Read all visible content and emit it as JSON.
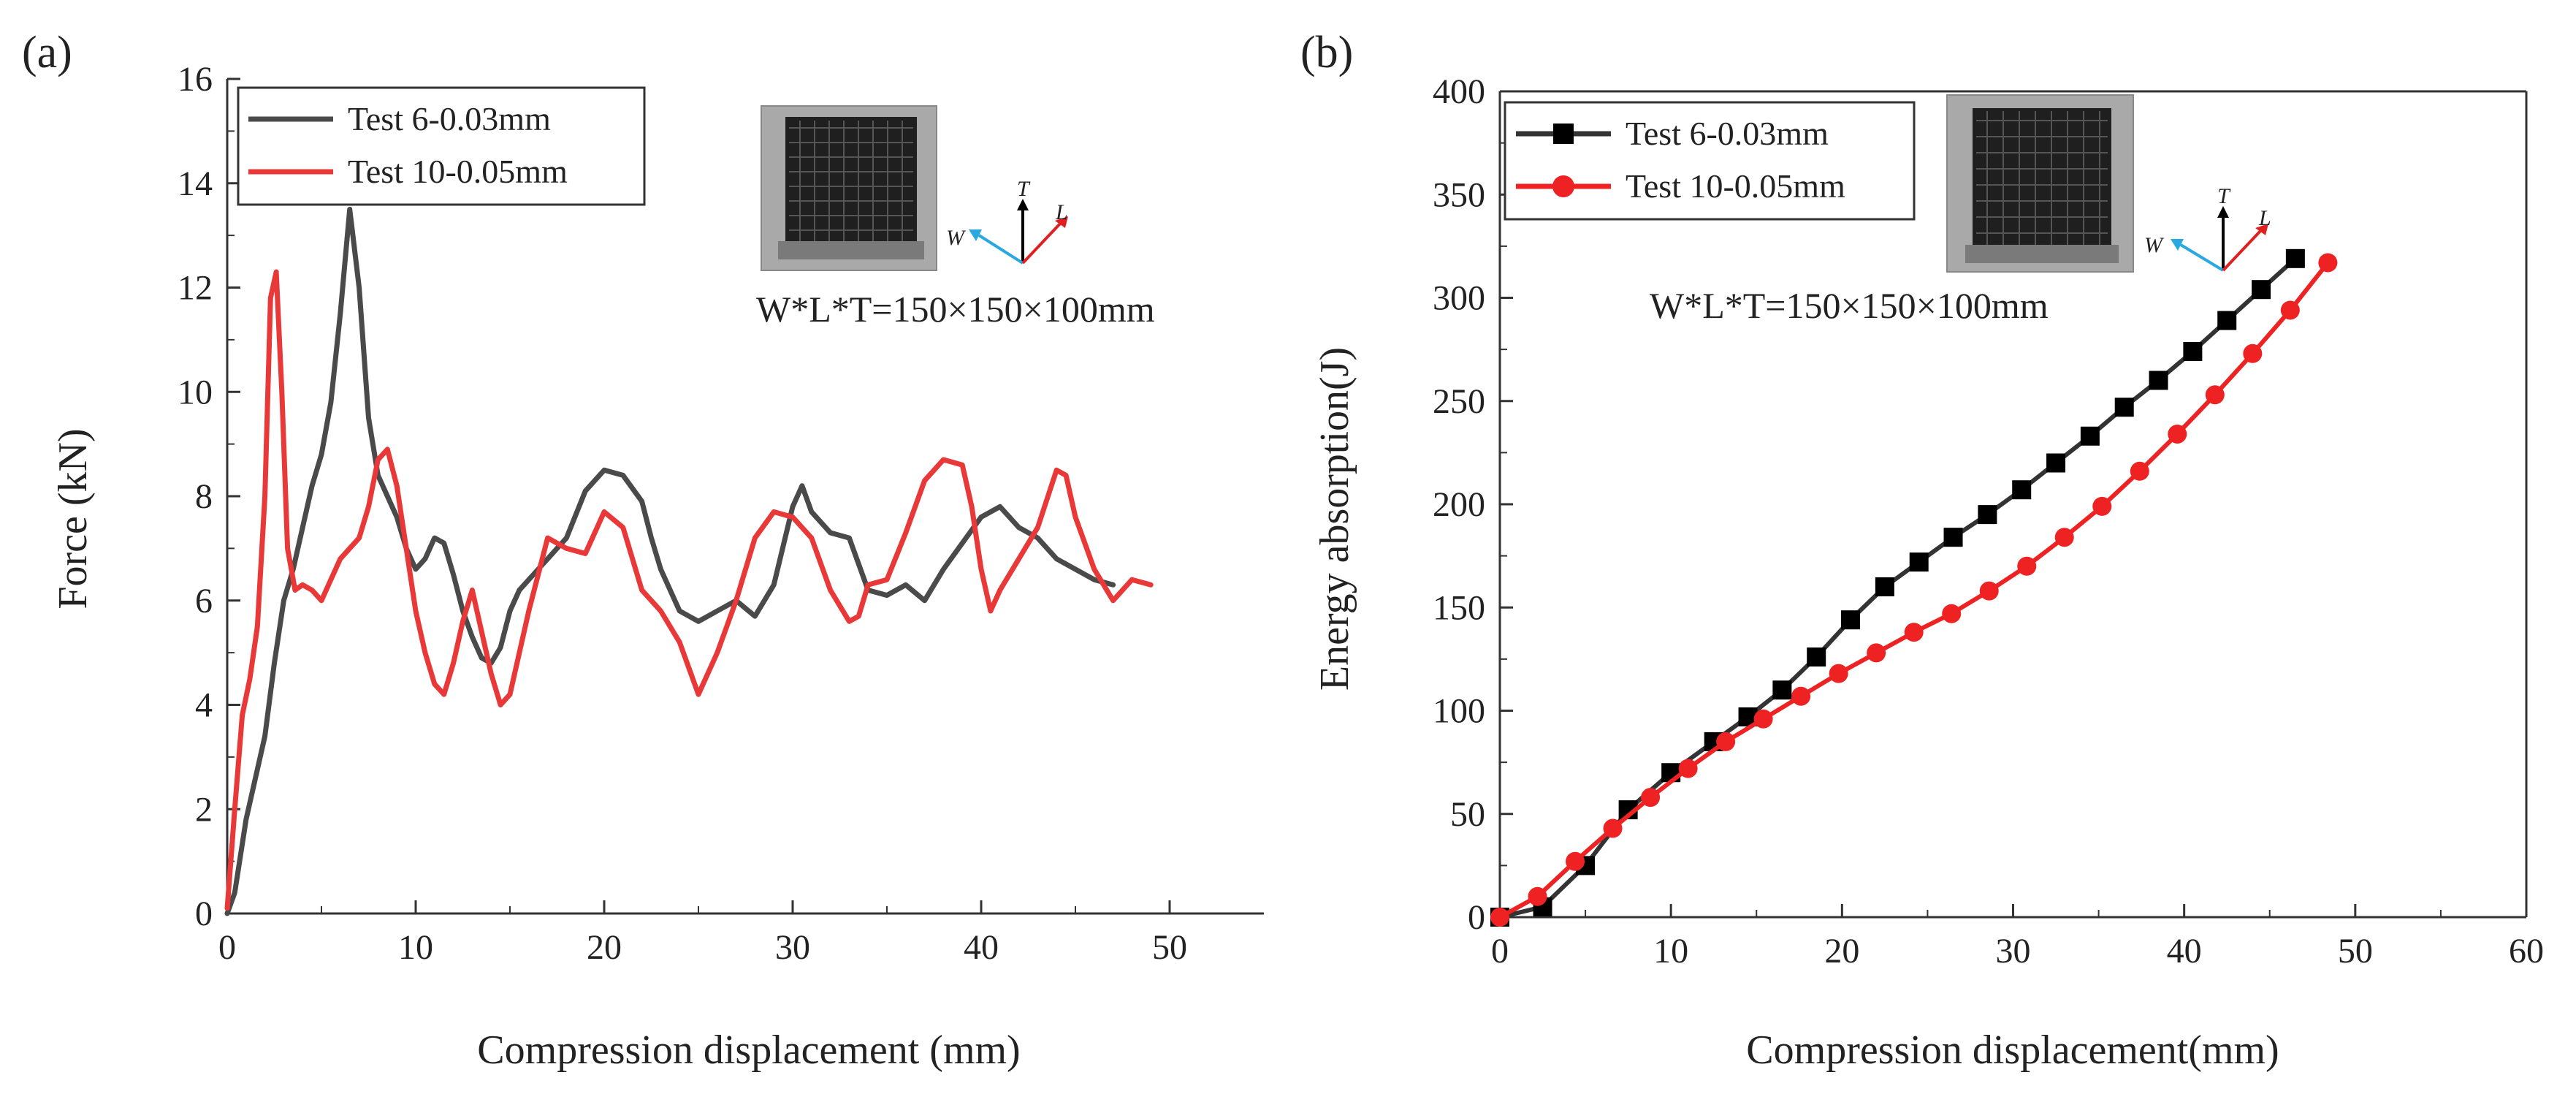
{
  "chart_data": [
    {
      "panel_label": "(a)",
      "type": "line",
      "xlabel": "Compression displacement (mm)",
      "ylabel": "Force (kN)",
      "xlim": [
        0,
        55
      ],
      "ylim": [
        0,
        16
      ],
      "xticks": [
        0,
        10,
        20,
        30,
        40,
        50
      ],
      "yticks": [
        0,
        2,
        4,
        6,
        8,
        10,
        12,
        14,
        16
      ],
      "legend_position": "top-left",
      "inset_dims": "W*L*T=150×150×100mm",
      "axis_letters": {
        "t": "T",
        "w": "W",
        "l": "L"
      },
      "series": [
        {
          "name": "Test 6-0.03mm",
          "color": "#4a4a4a",
          "x": [
            0,
            0.4,
            1,
            1.5,
            2,
            2.5,
            3,
            3.5,
            4,
            4.5,
            5,
            5.5,
            6,
            6.5,
            7,
            7.5,
            8,
            8.5,
            9,
            9.5,
            10,
            10.5,
            11,
            11.5,
            12,
            12.5,
            13,
            13.5,
            14,
            14.5,
            15,
            15.5,
            16,
            17,
            18,
            19,
            20,
            21,
            22,
            22.5,
            23,
            24,
            25,
            26,
            27,
            28,
            29,
            30,
            30.5,
            31,
            32,
            33,
            34,
            35,
            36,
            37,
            38,
            39,
            40,
            41,
            42,
            43,
            44,
            45,
            46,
            47
          ],
          "values": [
            0,
            0.4,
            1.8,
            2.6,
            3.4,
            4.8,
            6.0,
            6.6,
            7.4,
            8.2,
            8.8,
            9.8,
            11.5,
            13.5,
            12.0,
            9.5,
            8.4,
            8.0,
            7.6,
            7.0,
            6.6,
            6.8,
            7.2,
            7.1,
            6.5,
            5.8,
            5.3,
            4.9,
            4.8,
            5.1,
            5.8,
            6.2,
            6.4,
            6.8,
            7.2,
            8.1,
            8.5,
            8.4,
            7.9,
            7.2,
            6.6,
            5.8,
            5.6,
            5.8,
            6.0,
            5.7,
            6.3,
            7.8,
            8.2,
            7.7,
            7.3,
            7.2,
            6.2,
            6.1,
            6.3,
            6.0,
            6.6,
            7.1,
            7.6,
            7.8,
            7.4,
            7.2,
            6.8,
            6.6,
            6.4,
            6.3
          ]
        },
        {
          "name": "Test 10-0.05mm",
          "color": "#e83838",
          "x": [
            0,
            0.4,
            0.8,
            1.2,
            1.6,
            2,
            2.3,
            2.6,
            2.9,
            3.2,
            3.6,
            4,
            4.5,
            5,
            5.5,
            6,
            6.5,
            7,
            7.5,
            8,
            8.5,
            9,
            9.5,
            10,
            10.5,
            11,
            11.5,
            12,
            12.5,
            13,
            13.5,
            14,
            14.5,
            15,
            15.5,
            16,
            16.5,
            17,
            18,
            19,
            20,
            21,
            22,
            23,
            24,
            25,
            26,
            27,
            28,
            29,
            30,
            31,
            32,
            33,
            33.5,
            34,
            35,
            36,
            37,
            38,
            39,
            39.5,
            40,
            40.5,
            41,
            42,
            43,
            44,
            44.5,
            45,
            46,
            47,
            48,
            49
          ],
          "values": [
            0.1,
            2.0,
            3.8,
            4.5,
            5.5,
            8.0,
            11.8,
            12.3,
            10.0,
            7.0,
            6.2,
            6.3,
            6.2,
            6.0,
            6.4,
            6.8,
            7.0,
            7.2,
            7.8,
            8.7,
            8.9,
            8.2,
            7.0,
            5.8,
            5.0,
            4.4,
            4.2,
            4.8,
            5.6,
            6.2,
            5.4,
            4.6,
            4.0,
            4.2,
            5.0,
            5.8,
            6.5,
            7.2,
            7.0,
            6.9,
            7.7,
            7.4,
            6.2,
            5.8,
            5.2,
            4.2,
            5.0,
            6.0,
            7.2,
            7.7,
            7.6,
            7.2,
            6.2,
            5.6,
            5.7,
            6.3,
            6.4,
            7.3,
            8.3,
            8.7,
            8.6,
            7.8,
            6.6,
            5.8,
            6.2,
            6.8,
            7.4,
            8.5,
            8.4,
            7.6,
            6.6,
            6.0,
            6.4,
            6.3
          ]
        }
      ]
    },
    {
      "panel_label": "(b)",
      "type": "line",
      "xlabel": "Compression displacement(mm)",
      "ylabel": "Energy absorption(J)",
      "xlim": [
        0,
        60
      ],
      "ylim": [
        0,
        400
      ],
      "xticks": [
        0,
        10,
        20,
        30,
        40,
        50,
        60
      ],
      "yticks": [
        0,
        50,
        100,
        150,
        200,
        250,
        300,
        350,
        400
      ],
      "legend_position": "top-left",
      "inset_dims": "W*L*T=150×150×100mm",
      "axis_letters": {
        "t": "T",
        "w": "W",
        "l": "L"
      },
      "series": [
        {
          "name": "Test 6-0.03mm",
          "color": "#333333",
          "marker": "square",
          "x": [
            0,
            2.5,
            5,
            7.5,
            10,
            12.5,
            14.5,
            16.5,
            18.5,
            20.5,
            22.5,
            24.5,
            26.5,
            28.5,
            30.5,
            32.5,
            34.5,
            36.5,
            38.5,
            40.5,
            42.5,
            44.5,
            46.5
          ],
          "values": [
            0,
            5,
            25,
            52,
            70,
            85,
            97,
            110,
            126,
            144,
            160,
            172,
            184,
            195,
            207,
            220,
            233,
            247,
            260,
            274,
            289,
            304,
            319
          ]
        },
        {
          "name": "Test 10-0.05mm",
          "color": "#ee2222",
          "marker": "circle",
          "x": [
            0,
            2.2,
            4.4,
            6.6,
            8.8,
            11,
            13.2,
            15.4,
            17.6,
            19.8,
            22,
            24.2,
            26.4,
            28.6,
            30.8,
            33,
            35.2,
            37.4,
            39.6,
            41.8,
            44,
            46.2,
            48.4
          ],
          "values": [
            0,
            10,
            27,
            43,
            58,
            72,
            85,
            96,
            107,
            118,
            128,
            138,
            147,
            158,
            170,
            184,
            199,
            216,
            234,
            253,
            273,
            294,
            317
          ]
        }
      ]
    }
  ]
}
